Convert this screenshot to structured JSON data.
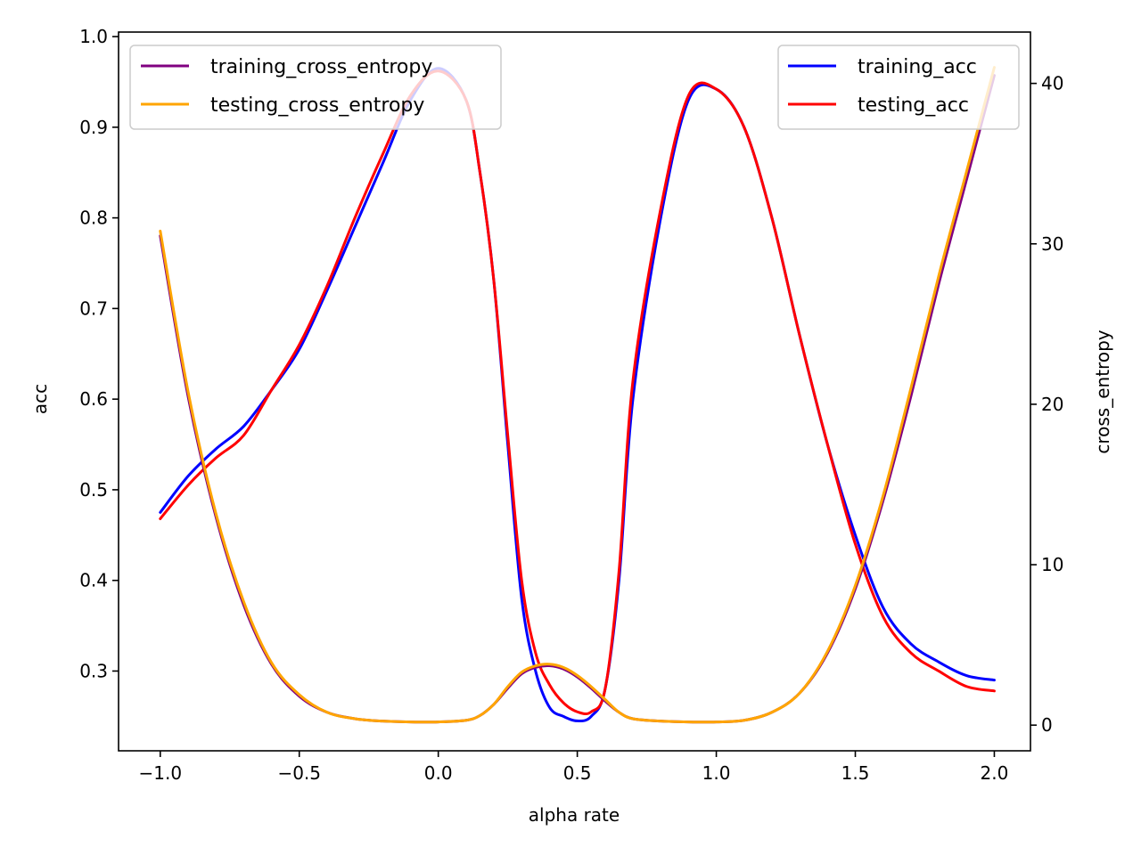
{
  "chart_data": {
    "type": "line",
    "title": "",
    "xlabel": "alpha rate",
    "ylabel": "acc",
    "y2label": "cross_entropy",
    "xlim": [
      -1.15,
      2.13
    ],
    "ylim": [
      0.212,
      1.005
    ],
    "y2lim": [
      -1.6,
      43.2
    ],
    "xticks": [
      -1.0,
      -0.5,
      0.0,
      0.5,
      1.0,
      1.5,
      2.0
    ],
    "xtick_labels": [
      "−1.0",
      "−0.5",
      "0.0",
      "0.5",
      "1.0",
      "1.5",
      "2.0"
    ],
    "yticks": [
      0.3,
      0.4,
      0.5,
      0.6,
      0.7,
      0.8,
      0.9,
      1.0
    ],
    "ytick_labels": [
      "0.3",
      "0.4",
      "0.5",
      "0.6",
      "0.7",
      "0.8",
      "0.9",
      "1.0"
    ],
    "y2ticks": [
      0,
      10,
      20,
      30,
      40
    ],
    "y2tick_labels": [
      "0",
      "10",
      "20",
      "30",
      "40"
    ],
    "grid": false,
    "legends": [
      {
        "placement": "upper-left",
        "entries": [
          "training_cross_entropy",
          "testing_cross_entropy"
        ]
      },
      {
        "placement": "upper-right",
        "entries": [
          "training_acc",
          "testing_acc"
        ]
      }
    ],
    "x": [
      -1.0,
      -0.9,
      -0.8,
      -0.7,
      -0.6,
      -0.5,
      -0.4,
      -0.3,
      -0.2,
      -0.1,
      0.0,
      0.1,
      0.15,
      0.2,
      0.25,
      0.3,
      0.35,
      0.4,
      0.45,
      0.5,
      0.55,
      0.6,
      0.65,
      0.7,
      0.8,
      0.9,
      1.0,
      1.1,
      1.2,
      1.3,
      1.4,
      1.5,
      1.6,
      1.7,
      1.8,
      1.9,
      2.0
    ],
    "series": [
      {
        "name": "training_acc",
        "axis": "left",
        "color": "#0000ff",
        "values": [
          0.475,
          0.515,
          0.545,
          0.57,
          0.61,
          0.655,
          0.72,
          0.79,
          0.86,
          0.93,
          0.965,
          0.93,
          0.85,
          0.73,
          0.55,
          0.38,
          0.3,
          0.26,
          0.25,
          0.245,
          0.25,
          0.28,
          0.4,
          0.6,
          0.8,
          0.93,
          0.942,
          0.9,
          0.8,
          0.67,
          0.55,
          0.45,
          0.37,
          0.33,
          0.31,
          0.295,
          0.29
        ]
      },
      {
        "name": "testing_acc",
        "axis": "left",
        "color": "#ff0000",
        "values": [
          0.468,
          0.505,
          0.535,
          0.56,
          0.61,
          0.66,
          0.725,
          0.8,
          0.87,
          0.935,
          0.962,
          0.93,
          0.85,
          0.73,
          0.56,
          0.4,
          0.32,
          0.285,
          0.265,
          0.255,
          0.255,
          0.28,
          0.41,
          0.62,
          0.81,
          0.935,
          0.942,
          0.9,
          0.8,
          0.67,
          0.55,
          0.44,
          0.36,
          0.32,
          0.3,
          0.283,
          0.278
        ]
      },
      {
        "name": "training_cross_entropy",
        "axis": "right",
        "color": "#800080",
        "values": [
          30.5,
          20.5,
          13.0,
          7.5,
          3.8,
          1.8,
          0.8,
          0.4,
          0.25,
          0.2,
          0.2,
          0.3,
          0.6,
          1.3,
          2.3,
          3.2,
          3.6,
          3.7,
          3.5,
          3.0,
          2.3,
          1.5,
          0.8,
          0.4,
          0.25,
          0.2,
          0.2,
          0.3,
          0.8,
          2.0,
          4.5,
          8.5,
          14.0,
          20.5,
          27.5,
          34.0,
          40.5
        ]
      },
      {
        "name": "testing_cross_entropy",
        "axis": "right",
        "color": "#ffa500",
        "values": [
          30.8,
          20.8,
          13.2,
          7.7,
          3.9,
          1.9,
          0.8,
          0.4,
          0.25,
          0.2,
          0.2,
          0.3,
          0.6,
          1.3,
          2.4,
          3.3,
          3.7,
          3.8,
          3.6,
          3.1,
          2.4,
          1.6,
          0.8,
          0.4,
          0.25,
          0.2,
          0.2,
          0.3,
          0.8,
          2.0,
          4.6,
          8.7,
          14.3,
          21.0,
          28.0,
          34.5,
          41.0
        ]
      }
    ]
  }
}
